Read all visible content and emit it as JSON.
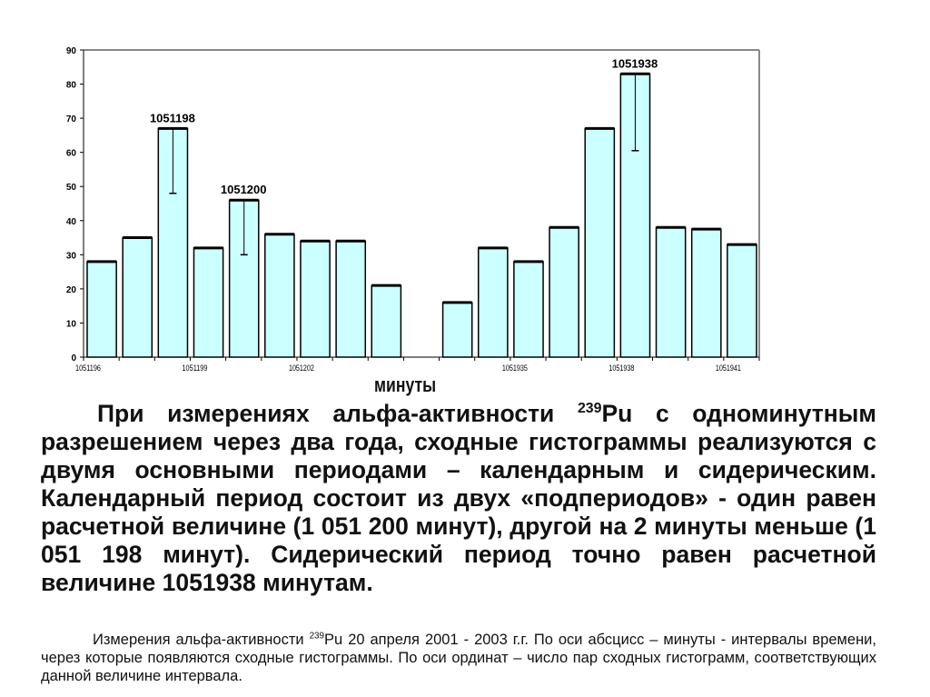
{
  "chart_data": {
    "type": "bar",
    "xlabel": "минуты",
    "ylabel": "",
    "ylim": [
      0,
      90
    ],
    "yticks": [
      0,
      10,
      20,
      30,
      40,
      50,
      60,
      70,
      80,
      90
    ],
    "categories": [
      "1051196",
      "1051197",
      "1051198",
      "1051199",
      "1051200",
      "1051201",
      "1051202",
      "1051203",
      "1051204",
      "",
      "1051933",
      "1051934",
      "1051935",
      "1051936",
      "1051937",
      "1051938",
      "1051939",
      "1051940",
      "1051941"
    ],
    "xtick_labels": [
      "1051196",
      "1051199",
      "1051202",
      "1051935",
      "1051938",
      "1051941"
    ],
    "values": [
      28,
      35,
      67,
      32,
      46,
      36,
      34,
      34,
      21,
      null,
      16,
      32,
      28,
      38,
      67,
      83,
      38,
      37.5,
      33
    ],
    "error_lower": [
      null,
      null,
      48,
      null,
      30,
      null,
      null,
      null,
      null,
      null,
      null,
      null,
      null,
      null,
      null,
      60.5,
      null,
      null,
      null
    ],
    "annotations": [
      {
        "category": "1051198",
        "text": "1051198"
      },
      {
        "category": "1051200",
        "text": "1051200"
      },
      {
        "category": "1051938",
        "text": "1051938"
      }
    ],
    "bar_color": "#ccffff",
    "grid": false
  },
  "text": {
    "paragraph_1": "При измерениях альфа-активности ",
    "paragraph_sup": "239",
    "paragraph_2": "Pu с одноминутным разрешением через два года, сходные гистограммы реализуются с двумя основными периодами – календарным и сидерическим. Календарный период состоит из двух «подпериодов» - один равен расчетной величине (1 051 200 минут), другой на 2 минуты меньше (1 051 198 минут). Сидерический период точно равен расчетной величине 1051938 минутам.",
    "caption_1": "Измерения альфа-активности ",
    "caption_sup": "239",
    "caption_2": "Pu 20 апреля 2001 -  2003 г.г. По оси абсцисс – минуты - интервалы времени, через которые появляются сходные гистограммы. По оси ординат – число пар сходных гистограмм, соответствующих данной величине интервала."
  }
}
